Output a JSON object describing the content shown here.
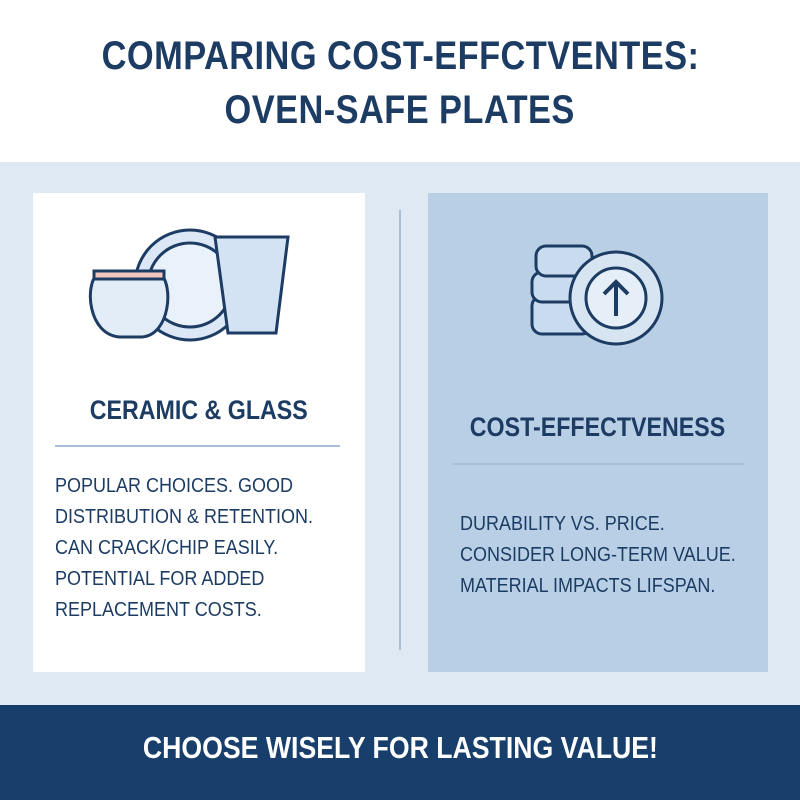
{
  "header": {
    "title_lines": [
      "COMPARING COST-EFFCTVENTES:",
      "OVEN-SAFE PLATES"
    ]
  },
  "panels": [
    {
      "title": "CERAMIC & GLASS",
      "lines": [
        "POPULAR CHOICES. GOOD",
        "DISTRIBUTION & RETENTION.",
        "CAN CRACK/CHIP EASILY.",
        "POTENTIAL FOR ADDED",
        "REPLACEMENT COSTS."
      ]
    },
    {
      "title": "COST-EFFECTVENESS",
      "lines": [
        "DURABILITY VS. PRICE.",
        "CONSIDER LONG-TERM VALUE.",
        "MATERIAL IMPACTS LIFSPAN."
      ]
    }
  ],
  "footer": {
    "text": "CHOOSE WISELY FOR LASTING VALUE!"
  }
}
